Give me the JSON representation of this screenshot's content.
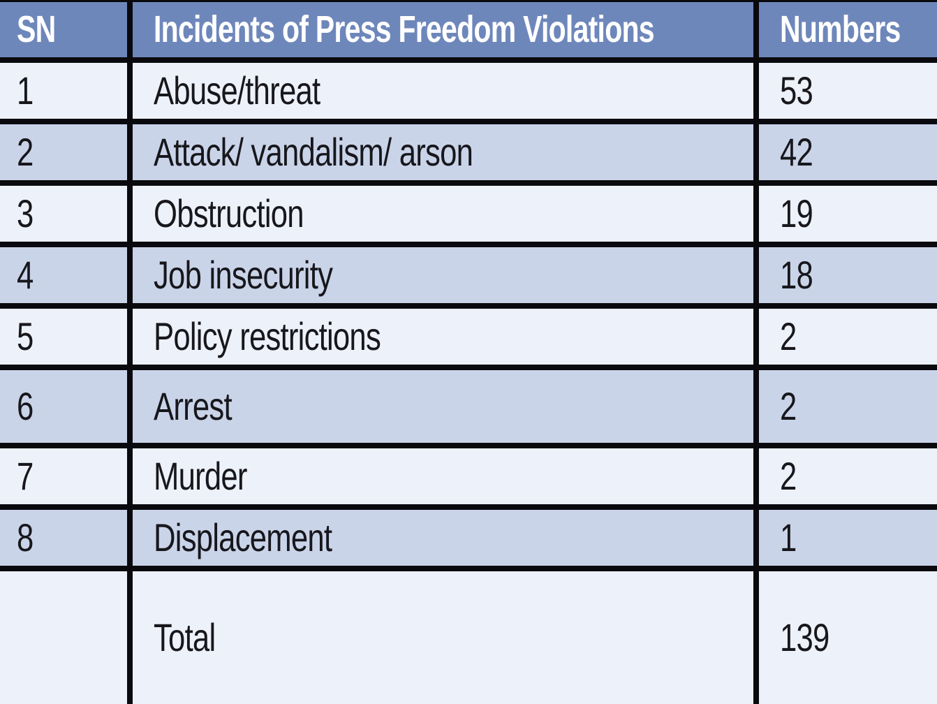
{
  "colors": {
    "header_bg": "#6e87bb",
    "header_text": "#ffffff",
    "row_light": "#edf1f9",
    "row_alt": "#cad4e9",
    "border": "#0a0a0e",
    "body_text": "#17171c"
  },
  "table": {
    "columns": [
      "SN",
      "Incidents of Press Freedom Violations",
      "Numbers"
    ],
    "rows": [
      {
        "sn": "1",
        "incident": "Abuse/threat",
        "number": "53"
      },
      {
        "sn": "2",
        "incident": "Attack/ vandalism/ arson",
        "number": "42"
      },
      {
        "sn": "3",
        "incident": "Obstruction",
        "number": "19"
      },
      {
        "sn": "4",
        "incident": "Job insecurity",
        "number": "18"
      },
      {
        "sn": "5",
        "incident": "Policy restrictions",
        "number": "2"
      },
      {
        "sn": "6",
        "incident": "Arrest",
        "number": "2"
      },
      {
        "sn": "7",
        "incident": "Murder",
        "number": "2"
      },
      {
        "sn": "8",
        "incident": "Displacement",
        "number": "1"
      },
      {
        "sn": "",
        "incident": "Total",
        "number": "139"
      }
    ]
  },
  "chart_data": {
    "type": "table",
    "title": "Incidents of Press Freedom Violations",
    "columns": [
      "SN",
      "Incidents of Press Freedom Violations",
      "Numbers"
    ],
    "categories": [
      "Abuse/threat",
      "Attack/ vandalism/ arson",
      "Obstruction",
      "Job insecurity",
      "Policy restrictions",
      "Arrest",
      "Murder",
      "Displacement"
    ],
    "values": [
      53,
      42,
      19,
      18,
      2,
      2,
      2,
      1
    ],
    "total": 139,
    "legend_position": "none",
    "grid": "on"
  }
}
